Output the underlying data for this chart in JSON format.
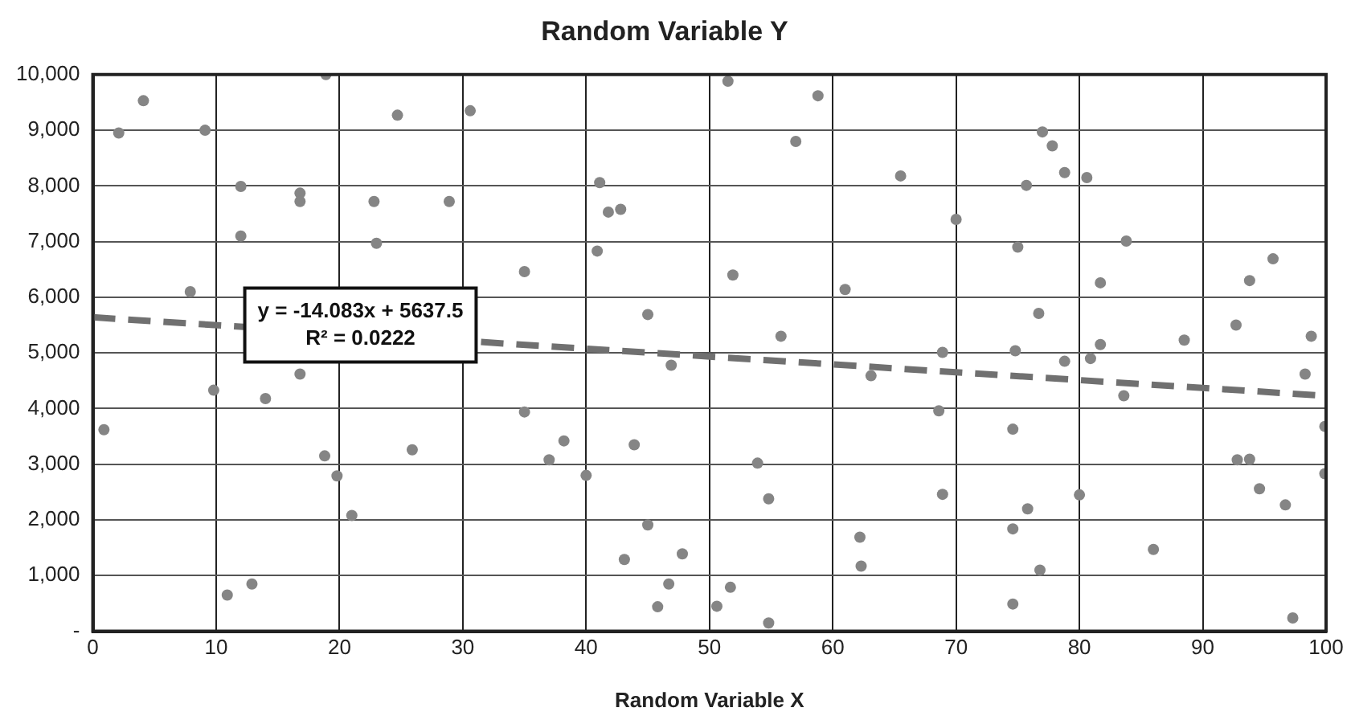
{
  "chart_data": {
    "type": "scatter",
    "title": "Random Variable Y",
    "xlabel": "Random Variable X",
    "xlim": [
      0,
      100
    ],
    "xticks": [
      0,
      10,
      20,
      30,
      40,
      50,
      60,
      70,
      80,
      90,
      100
    ],
    "ylim": [
      0,
      10000
    ],
    "yticks": [
      {
        "value": 0,
        "label": "-"
      },
      {
        "value": 1000,
        "label": "1,000"
      },
      {
        "value": 2000,
        "label": "2,000"
      },
      {
        "value": 3000,
        "label": "3,000"
      },
      {
        "value": 4000,
        "label": "4,000"
      },
      {
        "value": 5000,
        "label": "5,000"
      },
      {
        "value": 6000,
        "label": "6,000"
      },
      {
        "value": 7000,
        "label": "7,000"
      },
      {
        "value": 8000,
        "label": "8,000"
      },
      {
        "value": 9000,
        "label": "9,000"
      },
      {
        "value": 10000,
        "label": "10,000"
      }
    ],
    "grid": true,
    "legend": false,
    "marker": "circle",
    "annotations": [
      "y = -14.083x + 5637.5",
      "R² = 0.0222"
    ],
    "series": [
      {
        "color": "#858585",
        "x": [
          2.1,
          4.1,
          9.1,
          7.9,
          12.0,
          12.0,
          16.8,
          16.8,
          18.9,
          22.8,
          23.0,
          24.7,
          28.9,
          30.6,
          0.9,
          9.8,
          14.0,
          16.8,
          18.8,
          19.8,
          21.0,
          10.9,
          12.9,
          25.9,
          35.0,
          41.1,
          41.8,
          42.8,
          40.9,
          45.0,
          46.9,
          51.5,
          51.9,
          55.8,
          58.8,
          57.0,
          61.0,
          65.5,
          63.1,
          35.0,
          38.2,
          37.0,
          40.0,
          43.9,
          45.0,
          43.1,
          47.8,
          46.7,
          45.8,
          50.6,
          51.7,
          54.8,
          53.9,
          54.8,
          62.2,
          62.3,
          77.0,
          77.8,
          78.8,
          80.6,
          75.7,
          70.0,
          75.0,
          83.8,
          81.7,
          76.7,
          93.8,
          95.7,
          92.7,
          98.8,
          88.5,
          81.7,
          74.8,
          68.9,
          78.8,
          80.9,
          98.3,
          83.6,
          68.6,
          74.6,
          99.9,
          92.8,
          93.8,
          94.6,
          96.7,
          99.9,
          68.9,
          75.8,
          80.0,
          74.6,
          86.0,
          76.8,
          74.6,
          97.3
        ],
        "values": [
          8950,
          9530,
          9000,
          6100,
          7990,
          7100,
          7870,
          7720,
          10000,
          7720,
          6970,
          9270,
          7720,
          9350,
          3620,
          4330,
          4180,
          4620,
          3150,
          2790,
          2080,
          650,
          850,
          3260,
          6460,
          8060,
          7530,
          7580,
          6830,
          5690,
          4780,
          9880,
          6400,
          5300,
          9620,
          8800,
          6140,
          8180,
          4590,
          3940,
          3420,
          3080,
          2800,
          3350,
          1910,
          1290,
          1390,
          850,
          440,
          450,
          790,
          150,
          3020,
          2380,
          1690,
          1170,
          8970,
          8720,
          8240,
          8150,
          8010,
          7400,
          6900,
          7010,
          6260,
          5710,
          6300,
          6690,
          5500,
          5300,
          5230,
          5150,
          5040,
          5010,
          4850,
          4900,
          4620,
          4230,
          3960,
          3630,
          3680,
          3080,
          3090,
          2560,
          2270,
          2830,
          2460,
          2200,
          2450,
          1840,
          1470,
          1100,
          490,
          240
        ]
      },
      {
        "type": "line",
        "color": "#707070",
        "line_style": "dashed",
        "marker": "none",
        "x": [
          0,
          100
        ],
        "values": [
          5640,
          4230
        ]
      }
    ]
  }
}
